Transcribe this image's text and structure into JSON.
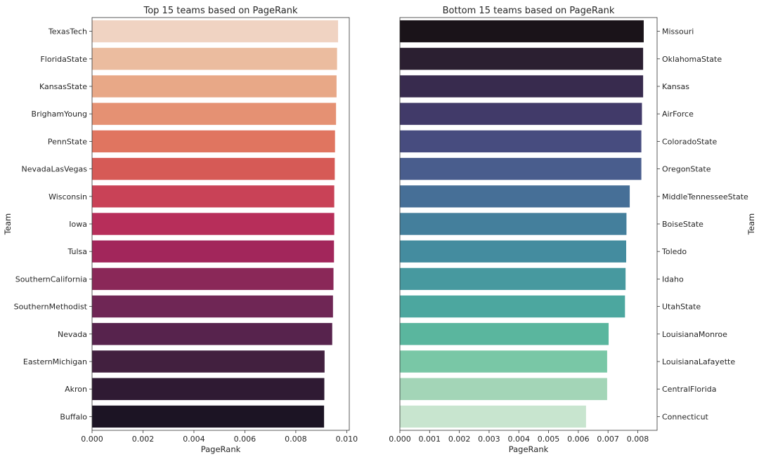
{
  "chart_data": [
    {
      "type": "bar",
      "orientation": "horizontal",
      "title": "Top 15 teams based on PageRank",
      "xlabel": "PageRank",
      "ylabel": "Team",
      "xlim": [
        0,
        0.0101
      ],
      "xticks": [
        "0.000",
        "0.002",
        "0.004",
        "0.006",
        "0.008",
        "0.010"
      ],
      "xtick_values": [
        0,
        0.002,
        0.004,
        0.006,
        0.008,
        0.01
      ],
      "ylabel_side": "left",
      "grid": false,
      "categories": [
        "TexasTech",
        "FloridaState",
        "KansasState",
        "BrighamYoung",
        "PennState",
        "NevadaLasVegas",
        "Wisconsin",
        "Iowa",
        "Tulsa",
        "SouthernCalifornia",
        "SouthernMethodist",
        "Nevada",
        "EasternMichigan",
        "Akron",
        "Buffalo"
      ],
      "values": [
        0.00966,
        0.00962,
        0.0096,
        0.00958,
        0.00954,
        0.00953,
        0.00951,
        0.00951,
        0.0095,
        0.00948,
        0.00946,
        0.00943,
        0.00913,
        0.00912,
        0.00911
      ],
      "colors": [
        "#f0d3c2",
        "#ebbc9f",
        "#e8a887",
        "#e59173",
        "#e07560",
        "#d65a56",
        "#c94257",
        "#b72e5a",
        "#a2265b",
        "#8a2858",
        "#6f2655",
        "#57234d",
        "#42203f",
        "#2f1a33",
        "#1c1424"
      ]
    },
    {
      "type": "bar",
      "orientation": "horizontal",
      "title": "Bottom 15 teams based on PageRank",
      "xlabel": "PageRank",
      "ylabel": "Team",
      "xlim": [
        0,
        0.00865
      ],
      "xticks": [
        "0.000",
        "0.001",
        "0.002",
        "0.003",
        "0.004",
        "0.005",
        "0.006",
        "0.007",
        "0.008"
      ],
      "xtick_values": [
        0,
        0.001,
        0.002,
        0.003,
        0.004,
        0.005,
        0.006,
        0.007,
        0.008
      ],
      "ylabel_side": "right",
      "grid": false,
      "categories": [
        "Missouri",
        "OklahomaState",
        "Kansas",
        "AirForce",
        "ColoradoState",
        "OregonState",
        "MiddleTennesseeState",
        "BoiseState",
        "Toledo",
        "Idaho",
        "UtahState",
        "LouisianaMonroe",
        "LouisianaLafayette",
        "CentralFlorida",
        "Connecticut"
      ],
      "values": [
        0.0082,
        0.00818,
        0.00818,
        0.00814,
        0.00812,
        0.00812,
        0.00773,
        0.00762,
        0.00761,
        0.00759,
        0.00757,
        0.00702,
        0.00697,
        0.00697,
        0.00626
      ],
      "colors": [
        "#1a1319",
        "#2b1f31",
        "#382b4e",
        "#413a69",
        "#474c7f",
        "#495d8d",
        "#466f97",
        "#447f9c",
        "#448c9f",
        "#47999f",
        "#4ca79f",
        "#5ab69e",
        "#79c7a6",
        "#a3d5b7",
        "#c8e5cf"
      ]
    }
  ]
}
